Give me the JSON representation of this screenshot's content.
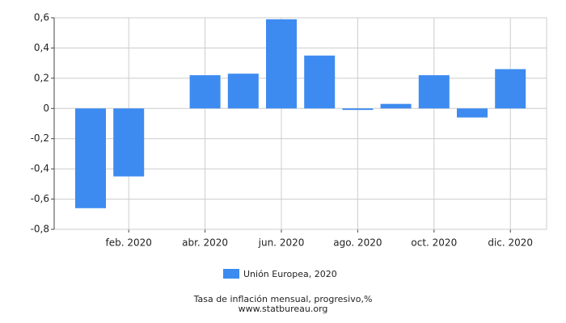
{
  "chart_data": {
    "type": "bar",
    "title": "Tasa de inflación mensual, progresivo,%",
    "source": "www.statbureau.org",
    "categories": [
      null,
      "feb. 2020",
      null,
      "abr. 2020",
      null,
      "jun. 2020",
      null,
      "ago. 2020",
      null,
      "oct. 2020",
      null,
      "dic. 2020"
    ],
    "series": [
      {
        "name": "Unión Europea, 2020",
        "color": "#3d8bf0",
        "values": [
          -0.66,
          -0.45,
          0,
          0.22,
          0.23,
          0.59,
          0.35,
          -0.01,
          0.03,
          0.22,
          -0.06,
          0.26
        ]
      }
    ],
    "ylim": [
      -0.8,
      0.6
    ],
    "yticks": [
      {
        "value": -0.8,
        "label": "-0,8"
      },
      {
        "value": -0.6,
        "label": "-0,6"
      },
      {
        "value": -0.4,
        "label": "-0,4"
      },
      {
        "value": -0.2,
        "label": "-0,2"
      },
      0,
      {
        "value": 0.2,
        "label": "0,2"
      },
      {
        "value": 0.4,
        "label": "0,4"
      },
      {
        "value": 0.6,
        "label": "0,6"
      }
    ],
    "grid": true
  }
}
